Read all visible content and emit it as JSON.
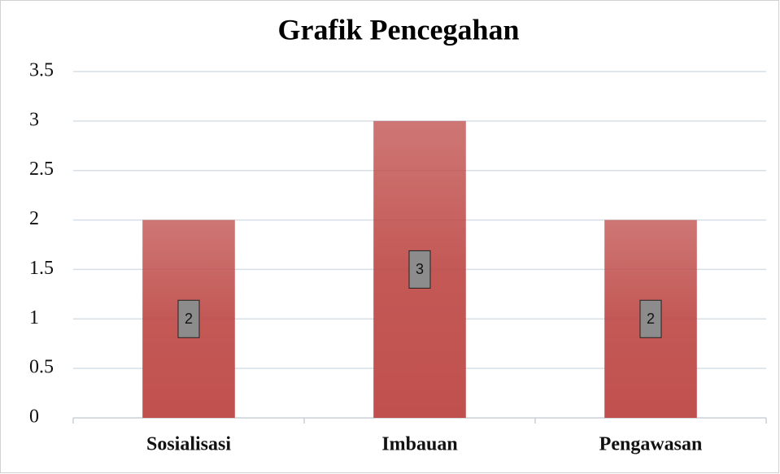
{
  "chart_data": {
    "type": "bar",
    "title": "Grafik Pencegahan",
    "categories": [
      "Sosialisasi",
      "Imbauan",
      "Pengawasan"
    ],
    "values": [
      2,
      3,
      2
    ],
    "color": "#c0504d",
    "ylim": [
      0,
      3.5
    ],
    "yticks": [
      0,
      0.5,
      1,
      1.5,
      2,
      2.5,
      3,
      3.5
    ],
    "grid": true
  }
}
